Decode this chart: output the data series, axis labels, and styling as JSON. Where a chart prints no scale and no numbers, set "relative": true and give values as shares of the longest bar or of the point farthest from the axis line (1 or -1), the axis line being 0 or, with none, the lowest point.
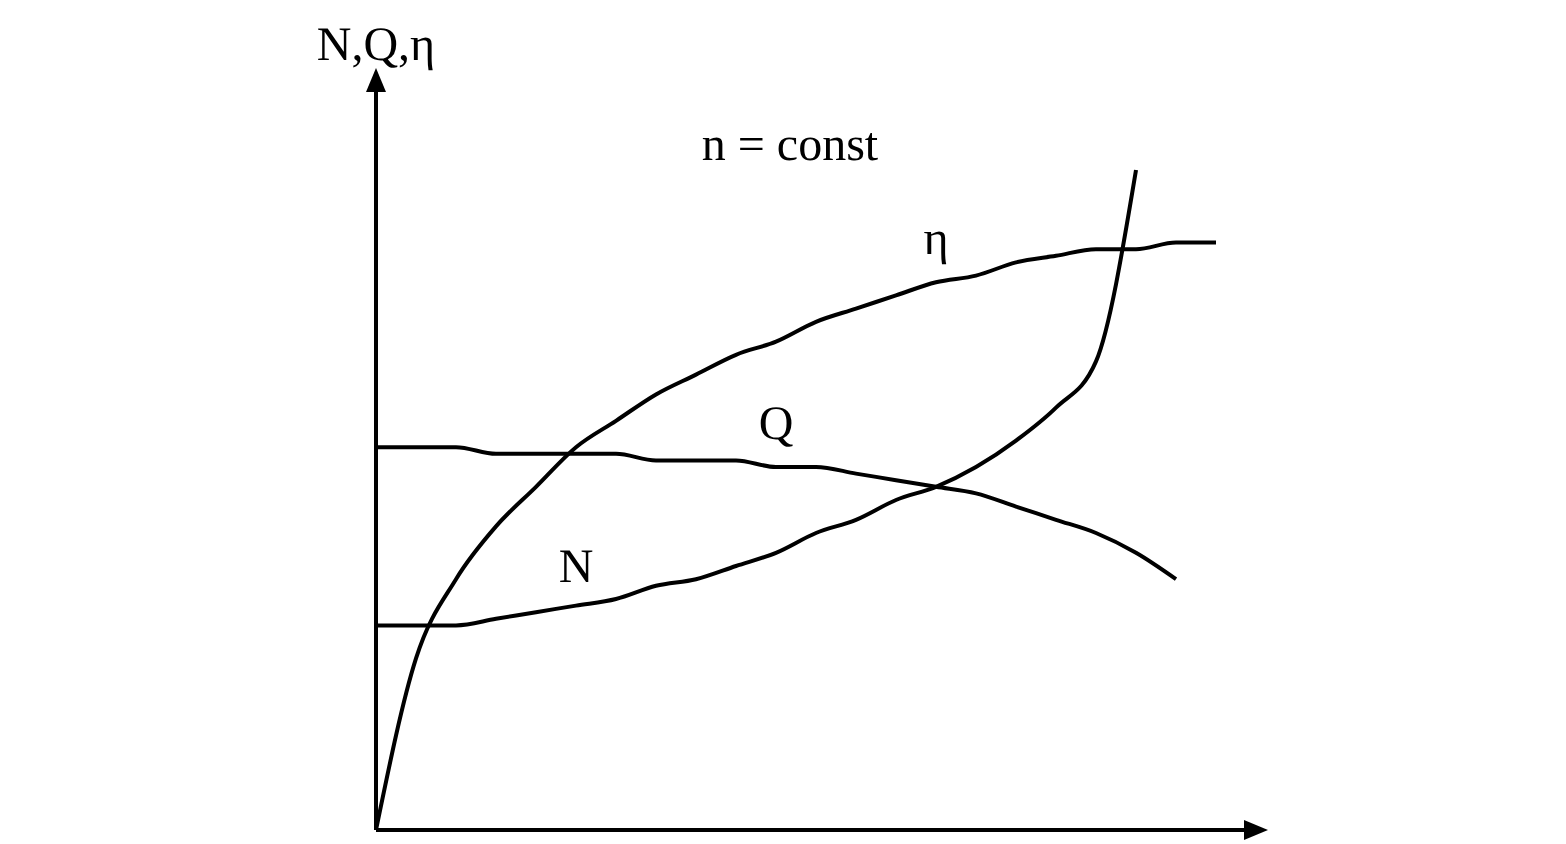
{
  "chart_data": {
    "type": "line",
    "relative": true,
    "ylabel": "N,Q,η",
    "annotations": [
      "n = const"
    ],
    "legend": false,
    "grid": false,
    "marker": "none",
    "line_style": "solid",
    "categories": [
      null,
      null,
      null,
      null,
      null,
      null,
      null,
      null,
      null,
      null,
      null,
      null,
      null,
      null,
      null,
      null,
      null,
      null,
      null,
      null,
      null,
      null
    ],
    "series": [
      {
        "name": "η",
        "color": "#000000",
        "values": [
          0,
          0.26,
          0.38,
          0.46,
          0.52,
          0.58,
          0.62,
          0.66,
          0.69,
          0.72,
          0.74,
          0.77,
          0.79,
          0.81,
          0.83,
          0.84,
          0.86,
          0.87,
          0.88,
          0.88,
          0.89,
          0.89
        ]
      },
      {
        "name": "Q",
        "color": "#000000",
        "values": [
          0.58,
          0.58,
          0.58,
          0.57,
          0.57,
          0.57,
          0.57,
          0.56,
          0.56,
          0.56,
          0.55,
          0.55,
          0.54,
          0.53,
          0.52,
          0.51,
          0.49,
          0.47,
          0.45,
          0.42,
          0.38,
          null
        ]
      },
      {
        "name": "N",
        "color": "#000000",
        "values": [
          0.31,
          0.31,
          0.31,
          0.32,
          0.33,
          0.34,
          0.35,
          0.37,
          0.38,
          0.4,
          0.42,
          0.45,
          0.47,
          0.5,
          0.52,
          0.55,
          0.59,
          0.64,
          0.71,
          1.0,
          null,
          null
        ]
      }
    ]
  }
}
